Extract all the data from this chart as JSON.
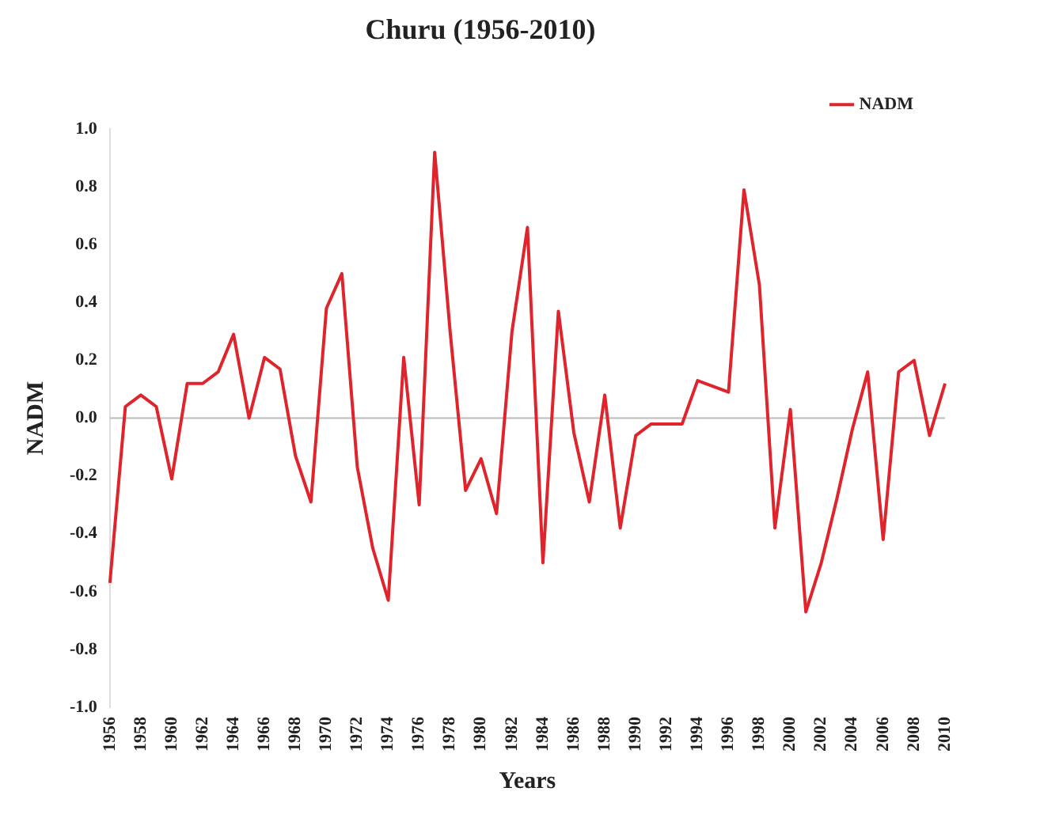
{
  "chart_data": {
    "type": "line",
    "title": "Churu (1956-2010)",
    "xlabel": "Years",
    "ylabel": "NADM",
    "categories": [
      "1956",
      null,
      "1958",
      null,
      "1960",
      null,
      "1962",
      null,
      "1964",
      null,
      "1966",
      null,
      "1968",
      null,
      "1970",
      null,
      "1972",
      null,
      "1974",
      null,
      "1976",
      null,
      "1978",
      null,
      "1980",
      null,
      "1982",
      null,
      "1984",
      null,
      "1986",
      null,
      "1988",
      null,
      "1990",
      null,
      "1992",
      null,
      "1994",
      null,
      "1996",
      null,
      "1998",
      null,
      "2000",
      null,
      "2002",
      null,
      "2004",
      null,
      "2006",
      null,
      "2008",
      null,
      "2010"
    ],
    "series": [
      {
        "name": "NADM",
        "color": "#e0242c",
        "values": [
          -0.57,
          0.04,
          0.08,
          0.04,
          -0.21,
          0.12,
          0.12,
          0.16,
          0.29,
          0.0,
          0.21,
          0.17,
          -0.13,
          -0.29,
          0.38,
          0.5,
          -0.17,
          -0.45,
          -0.63,
          0.21,
          -0.3,
          0.92,
          0.3,
          -0.25,
          -0.14,
          -0.33,
          0.3,
          0.66,
          -0.5,
          0.37,
          -0.05,
          -0.29,
          0.08,
          -0.38,
          -0.06,
          -0.02,
          -0.02,
          -0.02,
          0.13,
          0.11,
          0.09,
          0.79,
          0.46,
          -0.38,
          0.03,
          -0.67,
          -0.5,
          -0.28,
          -0.04,
          0.16,
          -0.42,
          0.16,
          0.2,
          -0.06,
          0.12
        ]
      }
    ],
    "ylim": [
      -1.0,
      1.0
    ],
    "yticks": [
      {
        "value": -1.0,
        "label": "-1.0"
      },
      {
        "value": -0.8,
        "label": "-0.8"
      },
      {
        "value": -0.6,
        "label": "-0.6"
      },
      {
        "value": -0.4,
        "label": "-0.4"
      },
      {
        "value": -0.2,
        "label": "-0.2"
      },
      {
        "value": 0,
        "label": "0.0"
      },
      {
        "value": 0.2,
        "label": "0.2"
      },
      {
        "value": 0.4,
        "label": "0.4"
      },
      {
        "value": 0.6,
        "label": "0.6"
      },
      {
        "value": 0.8,
        "label": "0.8"
      },
      {
        "value": 1.0,
        "label": "1.0"
      }
    ],
    "ref_lines": [
      {
        "axis": "y",
        "value": 0,
        "color": "#bbbbbb"
      }
    ],
    "grid": false,
    "legend": "top right",
    "marker": "none",
    "line_style": "solid"
  }
}
